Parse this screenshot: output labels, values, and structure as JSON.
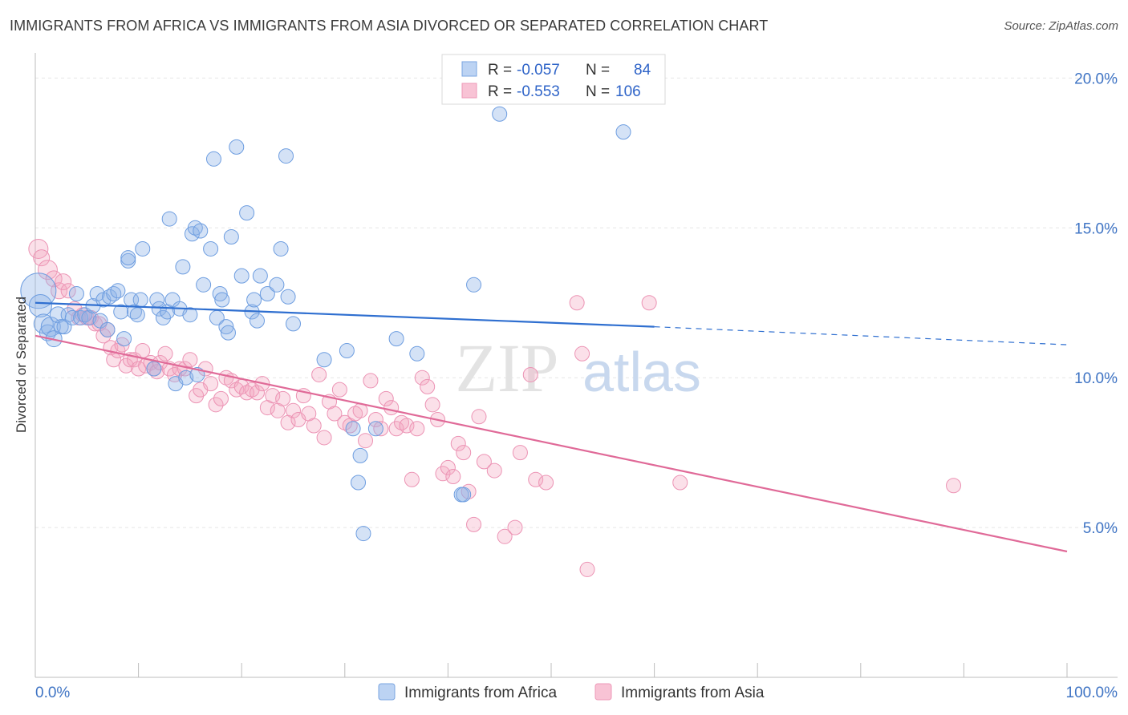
{
  "title": "IMMIGRANTS FROM AFRICA VS IMMIGRANTS FROM ASIA DIVORCED OR SEPARATED CORRELATION CHART",
  "source": "Source: ZipAtlas.com",
  "watermark": {
    "zip": "ZIP",
    "atlas": "atlas"
  },
  "legend": [
    {
      "r_label": "R =",
      "r_value": "-0.057",
      "n_label": "N =",
      "n_value": "84"
    },
    {
      "r_label": "R =",
      "r_value": "-0.553",
      "n_label": "N =",
      "n_value": "106"
    }
  ],
  "chart_data": {
    "type": "scatter",
    "title": "IMMIGRANTS FROM AFRICA VS IMMIGRANTS FROM ASIA DIVORCED OR SEPARATED CORRELATION CHART",
    "xlabel": "",
    "ylabel": "Divorced or Separated",
    "xlim": [
      0,
      100
    ],
    "ylim": [
      0,
      21
    ],
    "x_tick_labels": [
      "0.0%",
      "100.0%"
    ],
    "y_ticks": [
      5,
      10,
      15,
      20
    ],
    "y_tick_labels": [
      "5.0%",
      "10.0%",
      "15.0%",
      "20.0%"
    ],
    "grid": true,
    "legend_position": "top-center",
    "colors": {
      "africa": "#8fb4e8",
      "africa_line": "#2f6fd0",
      "asia": "#f4a6c0",
      "asia_line": "#e06a98"
    },
    "series": [
      {
        "name": "Immigrants from Africa",
        "trend": {
          "x0": 0,
          "y0": 12.5,
          "x1": 60,
          "y1": 11.7,
          "x_dash_end": 100,
          "y_dash_end": 11.1
        },
        "points": [
          [
            0.3,
            12.9,
            22
          ],
          [
            0.5,
            12.4,
            14
          ],
          [
            0.8,
            11.8,
            12
          ],
          [
            1.2,
            11.5,
            10
          ],
          [
            1.5,
            11.7,
            12
          ],
          [
            1.8,
            11.3,
            10
          ],
          [
            2.2,
            12.1,
            10
          ],
          [
            2.5,
            11.7,
            9
          ],
          [
            2.8,
            11.7,
            9
          ],
          [
            3.2,
            12.1,
            9
          ],
          [
            3.6,
            12.0,
            9
          ],
          [
            4.0,
            12.8,
            9
          ],
          [
            4.4,
            12.0,
            9
          ],
          [
            4.8,
            12.1,
            9
          ],
          [
            5.2,
            12.0,
            9
          ],
          [
            5.6,
            12.4,
            9
          ],
          [
            6.0,
            12.8,
            9
          ],
          [
            6.3,
            11.9,
            9
          ],
          [
            6.6,
            12.6,
            9
          ],
          [
            7.0,
            11.6,
            9
          ],
          [
            7.2,
            12.7,
            9
          ],
          [
            7.6,
            12.8,
            9
          ],
          [
            8.0,
            12.9,
            9
          ],
          [
            8.3,
            12.2,
            9
          ],
          [
            8.6,
            11.3,
            9
          ],
          [
            9.0,
            13.9,
            9
          ],
          [
            9.0,
            14.0,
            9
          ],
          [
            9.3,
            12.6,
            9
          ],
          [
            9.6,
            12.2,
            9
          ],
          [
            9.9,
            12.1,
            9
          ],
          [
            10.2,
            12.6,
            9
          ],
          [
            10.4,
            14.3,
            9
          ],
          [
            11.5,
            10.3,
            9
          ],
          [
            11.8,
            12.6,
            9
          ],
          [
            12.0,
            12.3,
            9
          ],
          [
            12.4,
            12.0,
            9
          ],
          [
            12.8,
            12.2,
            9
          ],
          [
            13.0,
            15.3,
            9
          ],
          [
            13.3,
            12.6,
            9
          ],
          [
            13.6,
            9.8,
            9
          ],
          [
            14.0,
            12.3,
            9
          ],
          [
            14.3,
            13.7,
            9
          ],
          [
            14.6,
            10.0,
            9
          ],
          [
            15.0,
            12.1,
            9
          ],
          [
            15.2,
            14.8,
            9
          ],
          [
            15.5,
            15.0,
            9
          ],
          [
            15.7,
            10.1,
            9
          ],
          [
            16.0,
            14.9,
            9
          ],
          [
            16.3,
            13.1,
            9
          ],
          [
            17.0,
            14.3,
            9
          ],
          [
            17.3,
            17.3,
            9
          ],
          [
            17.6,
            12.0,
            9
          ],
          [
            17.9,
            12.8,
            9
          ],
          [
            18.1,
            12.6,
            9
          ],
          [
            18.5,
            11.7,
            9
          ],
          [
            18.7,
            11.5,
            9
          ],
          [
            19.0,
            14.7,
            9
          ],
          [
            19.5,
            17.7,
            9
          ],
          [
            20.0,
            13.4,
            9
          ],
          [
            20.5,
            15.5,
            9
          ],
          [
            21.0,
            12.2,
            9
          ],
          [
            21.2,
            12.6,
            9
          ],
          [
            21.5,
            11.9,
            9
          ],
          [
            21.8,
            13.4,
            9
          ],
          [
            22.5,
            12.8,
            9
          ],
          [
            23.4,
            13.1,
            9
          ],
          [
            23.8,
            14.3,
            9
          ],
          [
            24.3,
            17.4,
            9
          ],
          [
            24.5,
            12.7,
            9
          ],
          [
            25.0,
            11.8,
            9
          ],
          [
            28.0,
            10.6,
            9
          ],
          [
            30.2,
            10.9,
            9
          ],
          [
            30.8,
            8.3,
            9
          ],
          [
            31.3,
            6.5,
            9
          ],
          [
            31.5,
            7.4,
            9
          ],
          [
            31.8,
            4.8,
            9
          ],
          [
            33.0,
            8.3,
            9
          ],
          [
            35.0,
            11.3,
            9
          ],
          [
            37.0,
            10.8,
            9
          ],
          [
            41.3,
            6.1,
            9
          ],
          [
            41.5,
            6.1,
            9
          ],
          [
            42.5,
            13.1,
            9
          ],
          [
            45.0,
            18.8,
            9
          ],
          [
            57.0,
            18.2,
            9
          ]
        ]
      },
      {
        "name": "Immigrants from Asia",
        "trend": {
          "x0": 0,
          "y0": 11.4,
          "x1": 100,
          "y1": 4.2
        },
        "points": [
          [
            0.3,
            14.3,
            12
          ],
          [
            0.6,
            14.0,
            10
          ],
          [
            1.2,
            13.6,
            12
          ],
          [
            1.8,
            13.3,
            10
          ],
          [
            2.3,
            12.9,
            10
          ],
          [
            2.7,
            13.2,
            10
          ],
          [
            3.2,
            12.9,
            9
          ],
          [
            3.8,
            12.3,
            9
          ],
          [
            4.2,
            12.0,
            9
          ],
          [
            4.6,
            12.1,
            9
          ],
          [
            5.0,
            12.0,
            9
          ],
          [
            5.4,
            12.0,
            9
          ],
          [
            5.8,
            11.8,
            9
          ],
          [
            6.2,
            11.8,
            9
          ],
          [
            6.6,
            11.4,
            9
          ],
          [
            7.0,
            11.6,
            9
          ],
          [
            7.3,
            11.0,
            9
          ],
          [
            7.6,
            10.6,
            9
          ],
          [
            8.0,
            10.9,
            9
          ],
          [
            8.4,
            11.1,
            9
          ],
          [
            8.8,
            10.4,
            9
          ],
          [
            9.2,
            10.6,
            9
          ],
          [
            9.6,
            10.6,
            9
          ],
          [
            10.0,
            10.3,
            9
          ],
          [
            10.4,
            10.9,
            9
          ],
          [
            10.7,
            10.4,
            9
          ],
          [
            11.2,
            10.5,
            9
          ],
          [
            11.5,
            10.3,
            9
          ],
          [
            11.8,
            10.2,
            9
          ],
          [
            12.1,
            10.5,
            9
          ],
          [
            12.6,
            10.8,
            9
          ],
          [
            13.0,
            10.3,
            9
          ],
          [
            13.5,
            10.1,
            9
          ],
          [
            14.0,
            10.3,
            9
          ],
          [
            14.5,
            10.3,
            9
          ],
          [
            15.0,
            10.6,
            9
          ],
          [
            15.6,
            9.4,
            9
          ],
          [
            16.0,
            9.6,
            9
          ],
          [
            16.5,
            10.3,
            9
          ],
          [
            17.0,
            9.8,
            9
          ],
          [
            17.5,
            9.1,
            9
          ],
          [
            18.0,
            9.3,
            9
          ],
          [
            18.5,
            10.0,
            9
          ],
          [
            19.0,
            9.9,
            9
          ],
          [
            19.5,
            9.6,
            9
          ],
          [
            20.0,
            9.7,
            9
          ],
          [
            20.5,
            9.5,
            9
          ],
          [
            21.0,
            9.6,
            9
          ],
          [
            21.5,
            9.5,
            9
          ],
          [
            22.0,
            9.8,
            9
          ],
          [
            22.5,
            9.0,
            9
          ],
          [
            23.0,
            9.4,
            9
          ],
          [
            23.5,
            8.9,
            9
          ],
          [
            24.0,
            9.3,
            9
          ],
          [
            24.5,
            8.5,
            9
          ],
          [
            25.0,
            8.9,
            9
          ],
          [
            25.5,
            8.6,
            9
          ],
          [
            26.0,
            9.4,
            9
          ],
          [
            26.5,
            8.8,
            9
          ],
          [
            27.0,
            8.4,
            9
          ],
          [
            27.5,
            10.1,
            9
          ],
          [
            28.0,
            8.0,
            9
          ],
          [
            28.5,
            9.2,
            9
          ],
          [
            29.0,
            8.8,
            9
          ],
          [
            29.5,
            9.6,
            9
          ],
          [
            30.0,
            8.5,
            9
          ],
          [
            30.5,
            8.4,
            9
          ],
          [
            31.0,
            8.8,
            9
          ],
          [
            31.5,
            8.9,
            9
          ],
          [
            32.0,
            7.9,
            9
          ],
          [
            32.5,
            9.9,
            9
          ],
          [
            33.0,
            8.6,
            9
          ],
          [
            33.5,
            8.3,
            9
          ],
          [
            34.0,
            9.3,
            9
          ],
          [
            34.5,
            9.0,
            9
          ],
          [
            35.0,
            8.3,
            9
          ],
          [
            35.5,
            8.5,
            9
          ],
          [
            36.0,
            8.4,
            9
          ],
          [
            36.5,
            6.6,
            9
          ],
          [
            37.0,
            8.3,
            9
          ],
          [
            37.5,
            10.0,
            9
          ],
          [
            38.0,
            9.7,
            9
          ],
          [
            38.5,
            9.1,
            9
          ],
          [
            39.0,
            8.6,
            9
          ],
          [
            39.5,
            6.8,
            9
          ],
          [
            40.0,
            7.0,
            9
          ],
          [
            40.5,
            6.7,
            9
          ],
          [
            41.0,
            7.8,
            9
          ],
          [
            41.5,
            7.5,
            9
          ],
          [
            42.0,
            6.2,
            9
          ],
          [
            42.5,
            5.1,
            9
          ],
          [
            43.0,
            8.7,
            9
          ],
          [
            43.5,
            7.2,
            9
          ],
          [
            44.5,
            6.9,
            9
          ],
          [
            45.5,
            4.7,
            9
          ],
          [
            46.5,
            5.0,
            9
          ],
          [
            47.0,
            7.5,
            9
          ],
          [
            48.0,
            10.1,
            9
          ],
          [
            48.5,
            6.6,
            9
          ],
          [
            49.5,
            6.5,
            9
          ],
          [
            52.5,
            12.5,
            9
          ],
          [
            53.0,
            10.8,
            9
          ],
          [
            53.5,
            3.6,
            9
          ],
          [
            59.5,
            12.5,
            9
          ],
          [
            62.5,
            6.5,
            9
          ],
          [
            89.0,
            6.4,
            9
          ]
        ]
      }
    ]
  },
  "bottom_legend": [
    "Immigrants from Africa",
    "Immigrants from Asia"
  ]
}
